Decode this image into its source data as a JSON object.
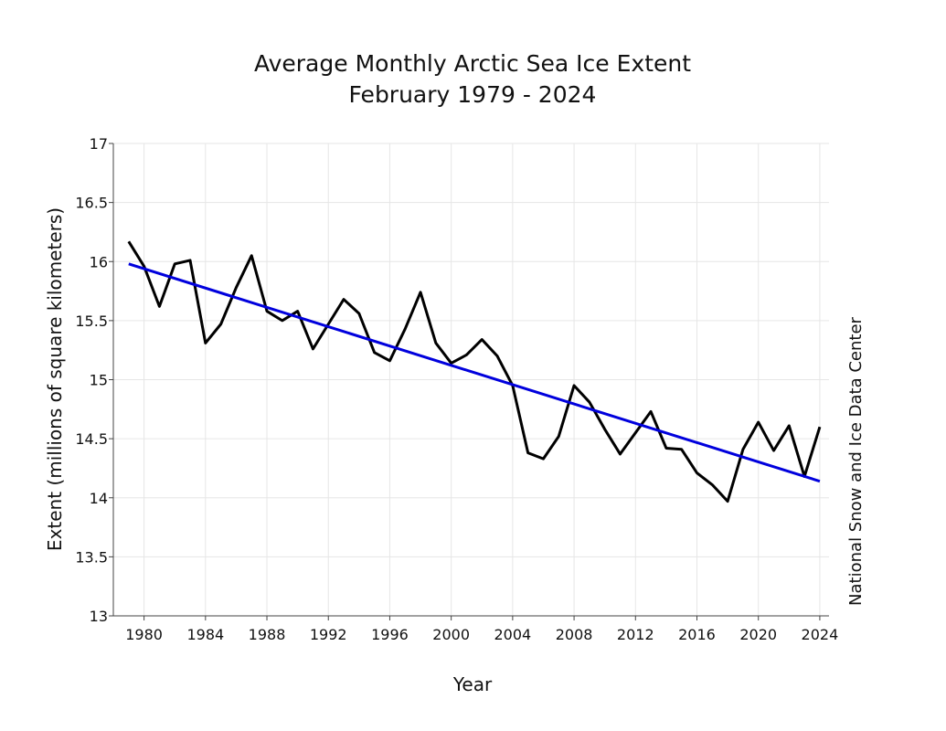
{
  "chart_data": {
    "type": "line",
    "title": "Average Monthly Arctic Sea Ice Extent",
    "subtitle": "February 1979 - 2024",
    "x_label": "Year",
    "y_label": "Extent (millions of square kilometers)",
    "source": "National Snow and Ice Data Center",
    "x": [
      1979,
      1980,
      1981,
      1982,
      1983,
      1984,
      1985,
      1986,
      1987,
      1988,
      1989,
      1990,
      1991,
      1992,
      1993,
      1994,
      1995,
      1996,
      1997,
      1998,
      1999,
      2000,
      2001,
      2002,
      2003,
      2004,
      2005,
      2006,
      2007,
      2008,
      2009,
      2010,
      2011,
      2012,
      2013,
      2014,
      2015,
      2016,
      2017,
      2018,
      2019,
      2020,
      2021,
      2022,
      2023,
      2024
    ],
    "series": [
      {
        "color": "#000000",
        "values": [
          16.17,
          15.96,
          15.62,
          15.98,
          16.01,
          15.31,
          15.47,
          15.78,
          16.05,
          15.58,
          15.5,
          15.58,
          15.26,
          15.47,
          15.68,
          15.56,
          15.23,
          15.16,
          15.43,
          15.74,
          15.31,
          15.14,
          15.21,
          15.34,
          15.2,
          14.95,
          14.38,
          14.33,
          14.52,
          14.95,
          14.81,
          14.58,
          14.37,
          14.55,
          14.73,
          14.42,
          14.41,
          14.21,
          14.11,
          13.97,
          14.41,
          14.64,
          14.4,
          14.61,
          14.18,
          14.6
        ]
      },
      {
        "color": "#0000dd",
        "x": [
          1979,
          2024
        ],
        "values": [
          15.98,
          14.14
        ]
      }
    ],
    "xlim": [
      1978,
      2024.6
    ],
    "xticks": [
      1980,
      1984,
      1988,
      1992,
      1996,
      2000,
      2004,
      2008,
      2012,
      2016,
      2020,
      2024
    ],
    "ylim": [
      13,
      17
    ],
    "yticks": [
      13,
      13.5,
      14,
      14.5,
      15,
      15.5,
      16,
      16.5,
      17
    ],
    "grid": true
  }
}
